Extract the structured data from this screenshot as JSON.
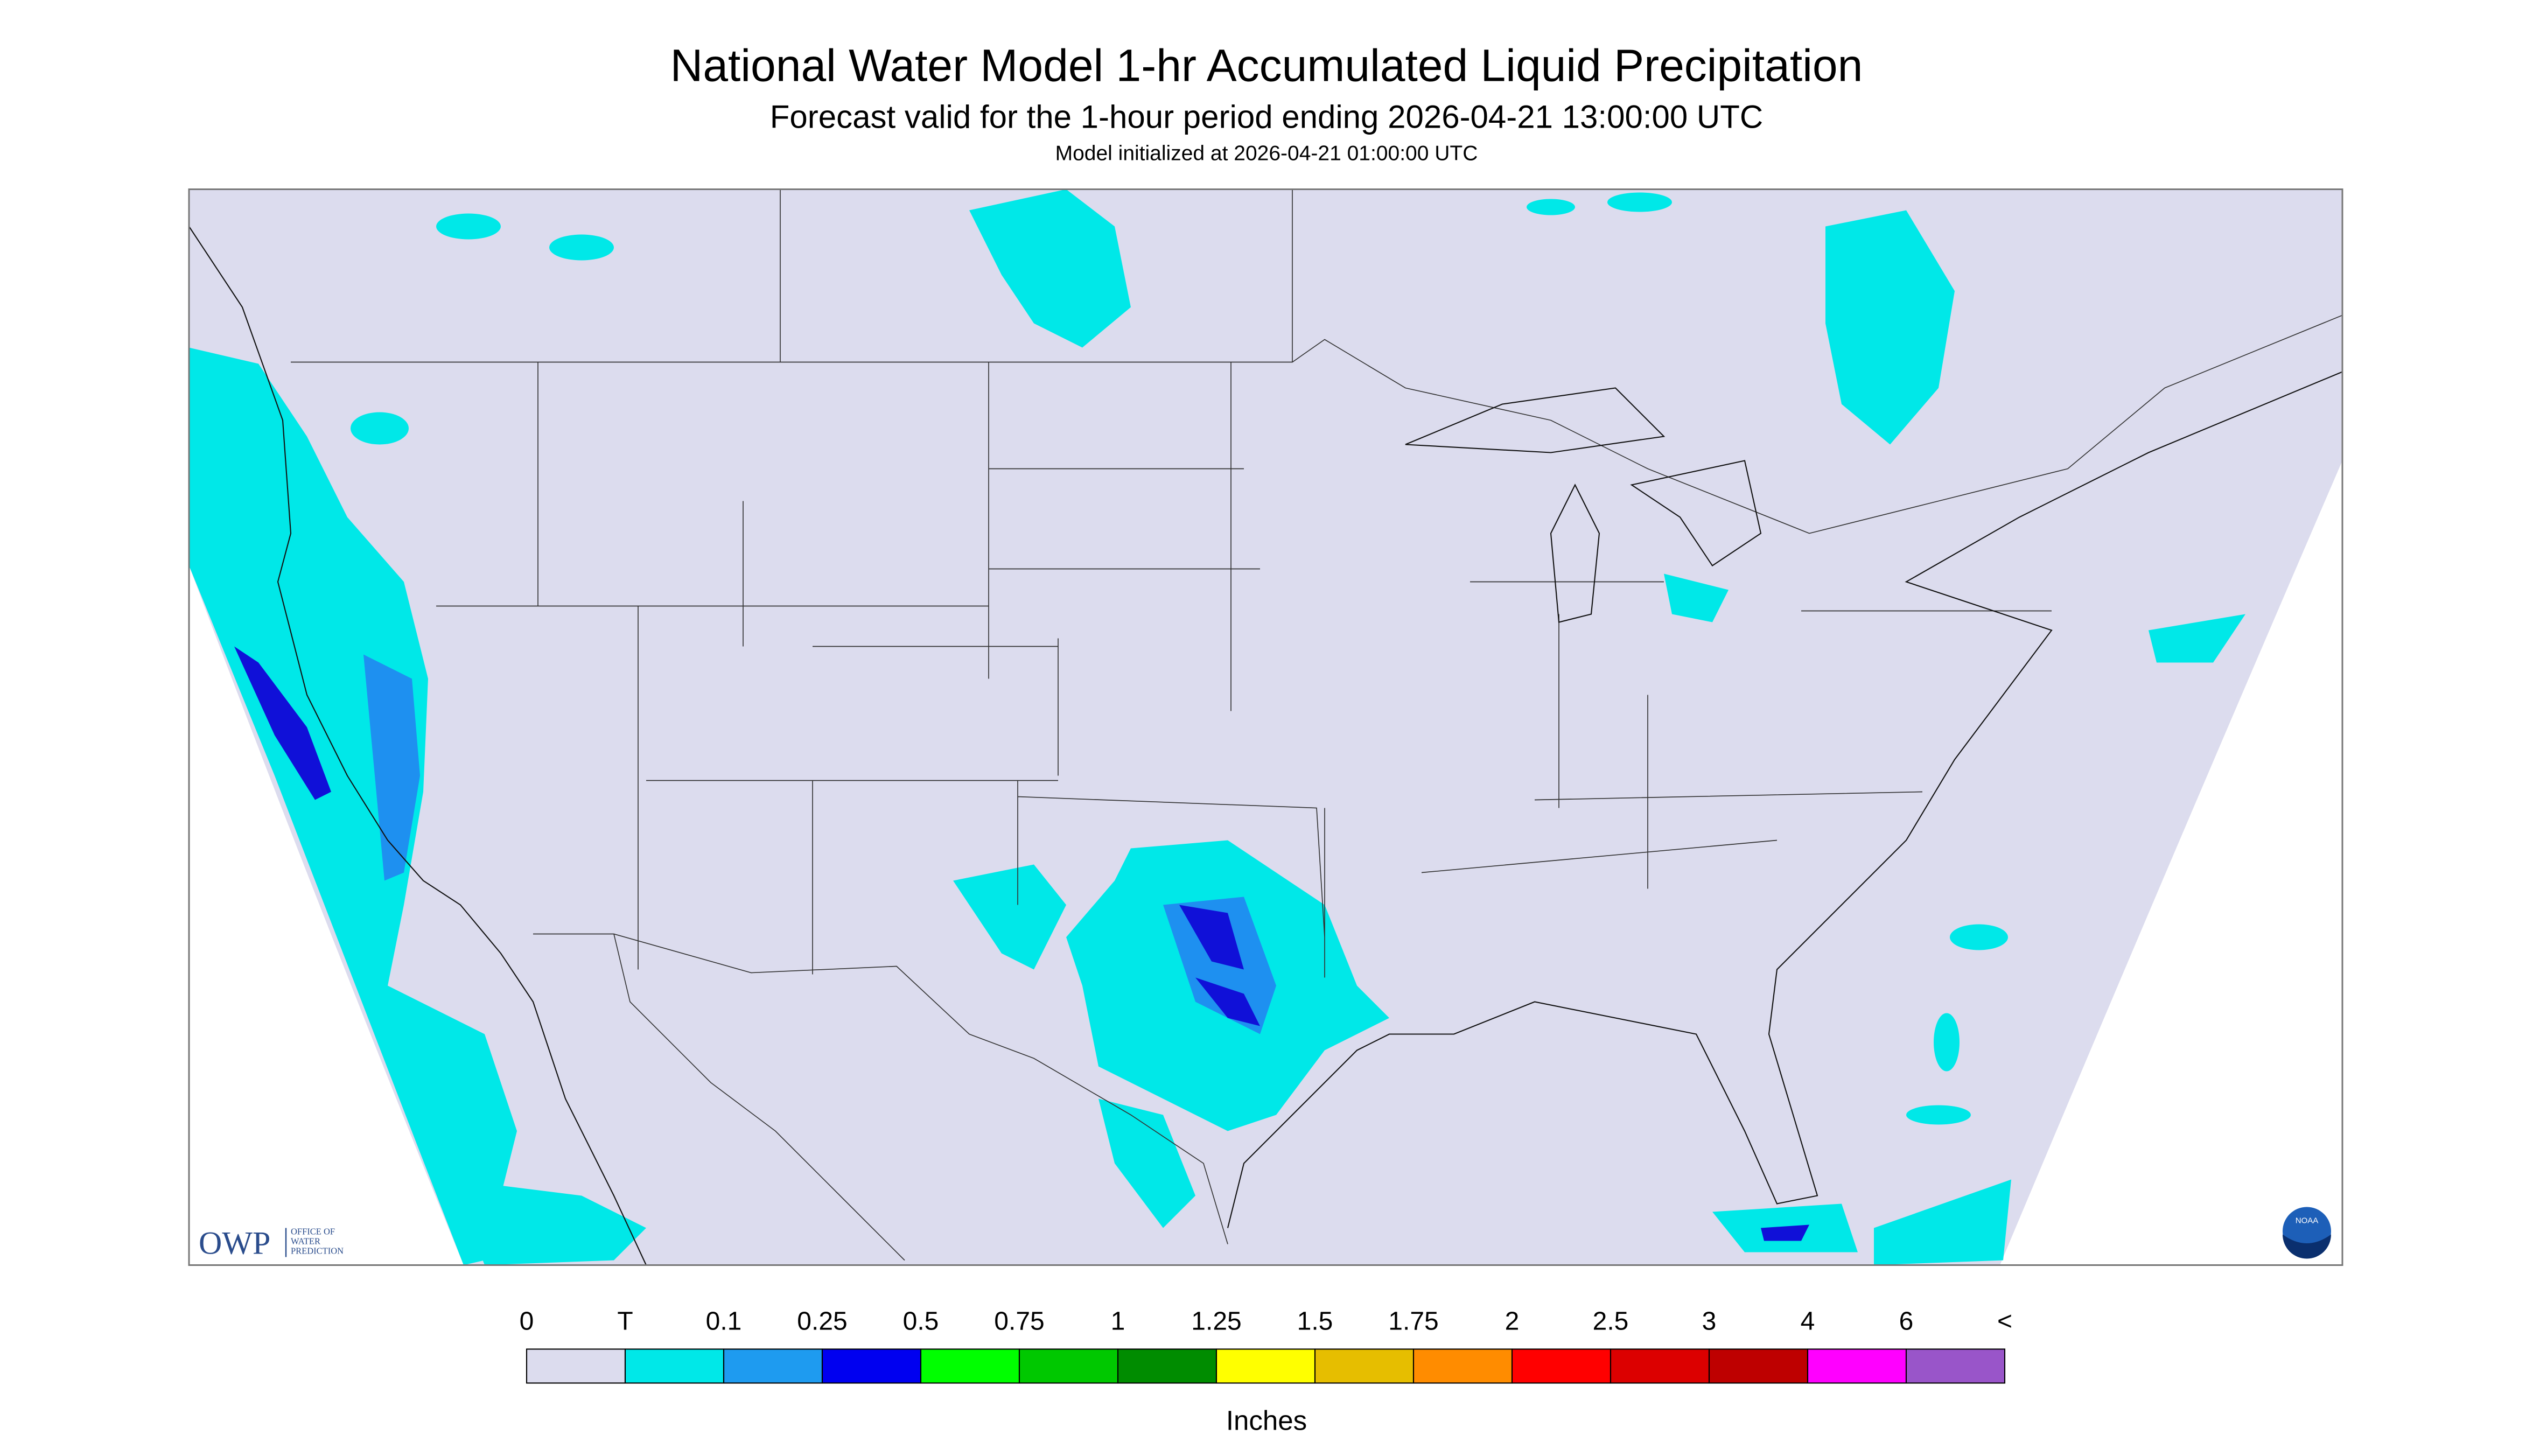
{
  "header": {
    "title": "National Water Model 1-hr Accumulated Liquid Precipitation",
    "subtitle": "Forecast valid for the 1-hour period ending 2026-04-21 13:00:00 UTC",
    "init": "Model initialized at 2026-04-21 01:00:00 UTC"
  },
  "logos": {
    "owp": "OWP",
    "owp_lines": [
      "OFFICE OF",
      "WATER",
      "PREDICTION"
    ],
    "noaa": "NOAA"
  },
  "legend": {
    "labels": [
      "0",
      "T",
      "0.1",
      "0.25",
      "0.5",
      "0.75",
      "1",
      "1.25",
      "1.5",
      "1.75",
      "2",
      "2.5",
      "3",
      "4",
      "6",
      "<"
    ],
    "colors": [
      "#dcdcee",
      "#00e8e8",
      "#1e9bf0",
      "#0000f0",
      "#00ff00",
      "#00c800",
      "#008c00",
      "#ffff00",
      "#e6be00",
      "#ff8c00",
      "#ff0000",
      "#dc0000",
      "#be0000",
      "#ff00ff",
      "#9955c9"
    ],
    "units": "Inches"
  }
}
